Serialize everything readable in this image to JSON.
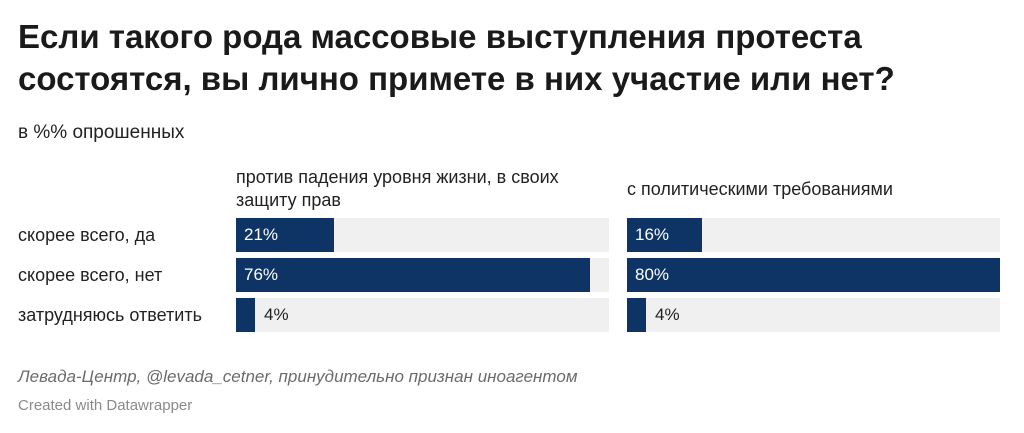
{
  "title": "Если такого рода массовые выступления протеста состоятся, вы лично примете в них участие или нет?",
  "subtitle": "в %% опрошенных",
  "source": "Левада-Центр, @levada_cetner, принудительно признан иноагентом",
  "credit": "Created with Datawrapper",
  "colors": {
    "bar": "#0e3466",
    "track": "#f0f0f0"
  },
  "chart_data": {
    "type": "bar",
    "orientation": "horizontal",
    "categories": [
      "скорее всего, да",
      "скорее всего, нет",
      "затрудняюсь ответить"
    ],
    "xlim": [
      0,
      80
    ],
    "series": [
      {
        "name": "против падения уровня жизни, в своих защиту прав",
        "values": [
          21,
          76,
          4
        ]
      },
      {
        "name": "с политическими требованиями",
        "values": [
          16,
          80,
          4
        ]
      }
    ],
    "value_labels": [
      [
        "21%",
        "76%",
        "4%"
      ],
      [
        "16%",
        "80%",
        "4%"
      ]
    ]
  }
}
